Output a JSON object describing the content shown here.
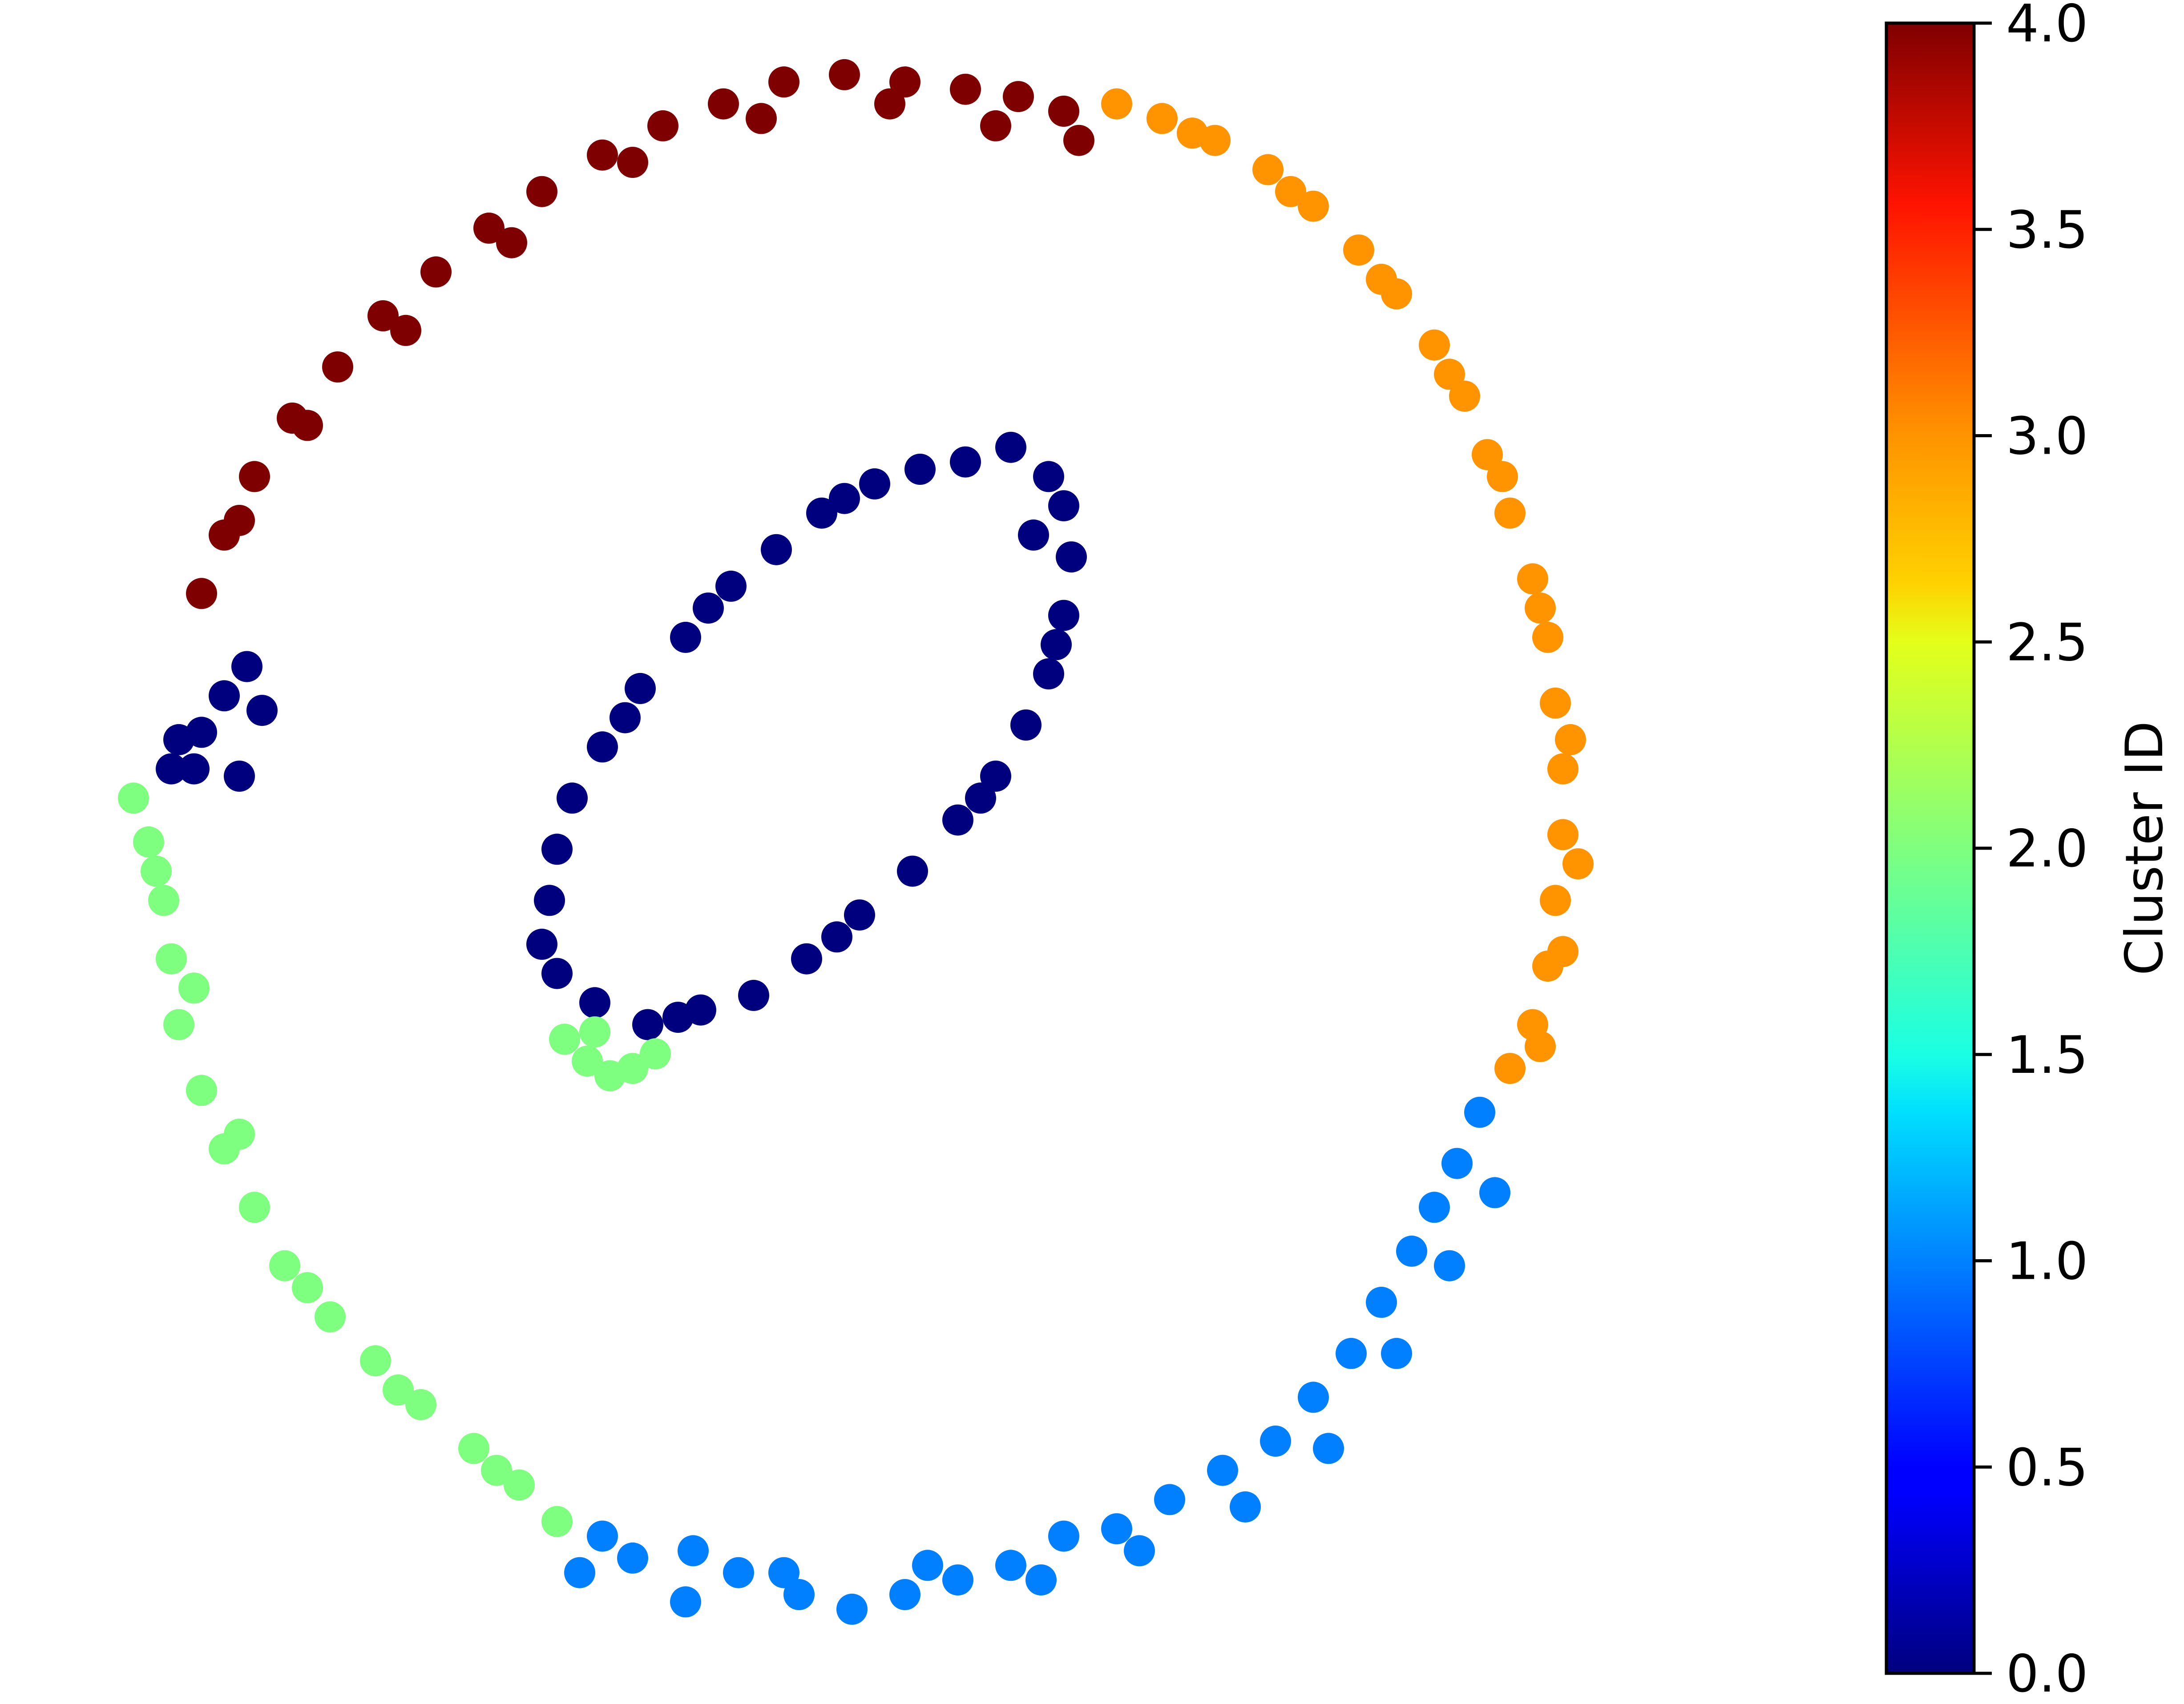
{
  "chart_data": {
    "type": "scatter",
    "title": "",
    "xlabel": "",
    "ylabel": "",
    "axes_visible": false,
    "grid": false,
    "legend": "none",
    "xlim": [
      -1.05,
      1.05
    ],
    "ylim": [
      -1.05,
      1.05
    ],
    "point_color": "cluster_id via jet colormap",
    "series": [
      {
        "cluster_id": 0,
        "color": "#00007f",
        "description_shape": "inner tilted ellipse plus a small arc at upper-left of outer ring",
        "points": [
          [
            -0.46,
            -0.16
          ],
          [
            -0.44,
            -0.03
          ],
          [
            -0.42,
            0.04
          ],
          [
            -0.38,
            0.11
          ],
          [
            -0.33,
            0.19
          ],
          [
            -0.27,
            0.26
          ],
          [
            -0.21,
            0.33
          ],
          [
            -0.15,
            0.38
          ],
          [
            -0.09,
            0.43
          ],
          [
            -0.02,
            0.47
          ],
          [
            0.04,
            0.49
          ],
          [
            0.1,
            0.5
          ],
          [
            0.16,
            0.52
          ],
          [
            0.21,
            0.48
          ],
          [
            0.23,
            0.44
          ],
          [
            0.24,
            0.37
          ],
          [
            0.23,
            0.29
          ],
          [
            0.21,
            0.21
          ],
          [
            0.18,
            0.14
          ],
          [
            0.14,
            0.07
          ],
          [
            0.09,
            0.01
          ],
          [
            0.03,
            -0.06
          ],
          [
            -0.04,
            -0.12
          ],
          [
            -0.11,
            -0.18
          ],
          [
            -0.18,
            -0.23
          ],
          [
            -0.25,
            -0.25
          ],
          [
            -0.32,
            -0.27
          ],
          [
            -0.39,
            -0.24
          ],
          [
            -0.44,
            -0.2
          ],
          [
            -0.45,
            -0.1
          ],
          [
            -0.35,
            0.15
          ],
          [
            -0.24,
            0.3
          ],
          [
            -0.06,
            0.45
          ],
          [
            0.19,
            0.4
          ],
          [
            0.22,
            0.25
          ],
          [
            0.12,
            0.04
          ],
          [
            -0.07,
            -0.15
          ],
          [
            -0.28,
            -0.26
          ],
          [
            -0.94,
            0.12
          ],
          [
            -0.91,
            0.13
          ],
          [
            -0.88,
            0.18
          ],
          [
            -0.85,
            0.22
          ],
          [
            -0.83,
            0.16
          ],
          [
            -0.86,
            0.07
          ],
          [
            -0.95,
            0.08
          ],
          [
            -0.92,
            0.08
          ]
        ]
      },
      {
        "cluster_id": 1,
        "color": "#007fff",
        "description_shape": "lower-right arc of outer ring",
        "points": [
          [
            -0.41,
            -1.02
          ],
          [
            -0.34,
            -1.0
          ],
          [
            -0.27,
            -1.06
          ],
          [
            -0.2,
            -1.02
          ],
          [
            -0.12,
            -1.05
          ],
          [
            -0.05,
            -1.07
          ],
          [
            0.02,
            -1.05
          ],
          [
            0.09,
            -1.03
          ],
          [
            0.16,
            -1.01
          ],
          [
            0.23,
            -0.97
          ],
          [
            0.3,
            -0.96
          ],
          [
            0.37,
            -0.92
          ],
          [
            0.44,
            -0.88
          ],
          [
            0.51,
            -0.84
          ],
          [
            0.56,
            -0.78
          ],
          [
            0.61,
            -0.72
          ],
          [
            0.65,
            -0.65
          ],
          [
            0.69,
            -0.58
          ],
          [
            0.72,
            -0.52
          ],
          [
            0.75,
            -0.46
          ],
          [
            0.78,
            -0.39
          ],
          [
            -0.38,
            -0.97
          ],
          [
            -0.26,
            -0.99
          ],
          [
            -0.14,
            -1.02
          ],
          [
            0.05,
            -1.01
          ],
          [
            0.2,
            -1.03
          ],
          [
            0.33,
            -0.99
          ],
          [
            0.47,
            -0.93
          ],
          [
            0.58,
            -0.85
          ],
          [
            0.67,
            -0.72
          ],
          [
            0.74,
            -0.6
          ],
          [
            0.8,
            -0.5
          ]
        ]
      },
      {
        "cluster_id": 2,
        "color": "#7fff7f",
        "description_shape": "lower-left arc of outer ring plus a small blob below inner ellipse",
        "points": [
          [
            -1.0,
            0.04
          ],
          [
            -0.98,
            -0.02
          ],
          [
            -0.96,
            -0.1
          ],
          [
            -0.95,
            -0.18
          ],
          [
            -0.94,
            -0.27
          ],
          [
            -0.91,
            -0.36
          ],
          [
            -0.88,
            -0.44
          ],
          [
            -0.84,
            -0.52
          ],
          [
            -0.8,
            -0.6
          ],
          [
            -0.74,
            -0.67
          ],
          [
            -0.68,
            -0.73
          ],
          [
            -0.62,
            -0.79
          ],
          [
            -0.55,
            -0.85
          ],
          [
            -0.49,
            -0.9
          ],
          [
            -0.44,
            -0.95
          ],
          [
            -0.97,
            -0.06
          ],
          [
            -0.92,
            -0.22
          ],
          [
            -0.86,
            -0.42
          ],
          [
            -0.77,
            -0.63
          ],
          [
            -0.65,
            -0.77
          ],
          [
            -0.52,
            -0.88
          ],
          [
            -0.43,
            -0.29
          ],
          [
            -0.4,
            -0.32
          ],
          [
            -0.37,
            -0.34
          ],
          [
            -0.34,
            -0.33
          ],
          [
            -0.31,
            -0.31
          ],
          [
            -0.39,
            -0.28
          ]
        ]
      },
      {
        "cluster_id": 3,
        "color": "#ff9400",
        "description_shape": "upper-right arc of outer ring",
        "points": [
          [
            0.3,
            0.99
          ],
          [
            0.36,
            0.97
          ],
          [
            0.43,
            0.94
          ],
          [
            0.5,
            0.9
          ],
          [
            0.56,
            0.85
          ],
          [
            0.62,
            0.79
          ],
          [
            0.67,
            0.73
          ],
          [
            0.72,
            0.66
          ],
          [
            0.76,
            0.59
          ],
          [
            0.79,
            0.51
          ],
          [
            0.82,
            0.43
          ],
          [
            0.85,
            0.34
          ],
          [
            0.87,
            0.26
          ],
          [
            0.88,
            0.17
          ],
          [
            0.89,
            0.08
          ],
          [
            0.89,
            -0.01
          ],
          [
            0.88,
            -0.1
          ],
          [
            0.87,
            -0.19
          ],
          [
            0.85,
            -0.27
          ],
          [
            0.82,
            -0.33
          ],
          [
            0.4,
            0.95
          ],
          [
            0.53,
            0.87
          ],
          [
            0.65,
            0.75
          ],
          [
            0.74,
            0.62
          ],
          [
            0.81,
            0.48
          ],
          [
            0.86,
            0.3
          ],
          [
            0.9,
            0.12
          ],
          [
            0.91,
            -0.05
          ],
          [
            0.89,
            -0.17
          ],
          [
            0.86,
            -0.3
          ]
        ]
      },
      {
        "cluster_id": 4,
        "color": "#7f0000",
        "description_shape": "upper-left arc of outer ring",
        "points": [
          [
            -0.91,
            0.32
          ],
          [
            -0.88,
            0.4
          ],
          [
            -0.84,
            0.48
          ],
          [
            -0.79,
            0.56
          ],
          [
            -0.73,
            0.63
          ],
          [
            -0.67,
            0.7
          ],
          [
            -0.6,
            0.76
          ],
          [
            -0.53,
            0.82
          ],
          [
            -0.46,
            0.87
          ],
          [
            -0.38,
            0.92
          ],
          [
            -0.3,
            0.96
          ],
          [
            -0.22,
            0.99
          ],
          [
            -0.14,
            1.02
          ],
          [
            -0.06,
            1.03
          ],
          [
            0.02,
            1.02
          ],
          [
            0.1,
            1.01
          ],
          [
            0.17,
            1.0
          ],
          [
            0.23,
            0.98
          ],
          [
            -0.86,
            0.42
          ],
          [
            -0.77,
            0.55
          ],
          [
            -0.64,
            0.68
          ],
          [
            -0.5,
            0.8
          ],
          [
            -0.34,
            0.91
          ],
          [
            -0.17,
            0.97
          ],
          [
            0.0,
            0.99
          ],
          [
            0.14,
            0.96
          ],
          [
            0.25,
            0.94
          ]
        ]
      }
    ],
    "colorbar": {
      "label": "Cluster ID",
      "min": 0.0,
      "max": 4.0,
      "colormap": "jet",
      "ticks": [
        "0.0",
        "0.5",
        "1.0",
        "1.5",
        "2.0",
        "2.5",
        "3.0",
        "3.5",
        "4.0"
      ]
    }
  }
}
